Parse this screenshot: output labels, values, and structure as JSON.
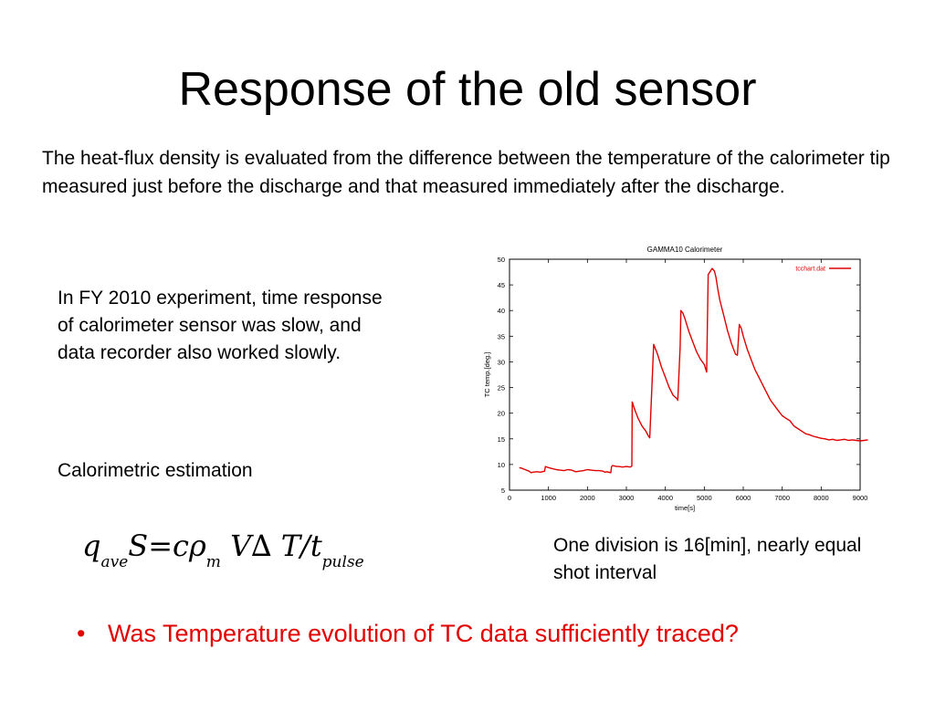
{
  "slide": {
    "title": "Response of the old sensor",
    "intro_text": "The heat-flux density is evaluated from the difference between the temperature of the calorimeter tip measured just before the discharge and that measured immediately after the discharge.",
    "note_text": "In FY 2010 experiment, time response of calorimeter sensor was slow, and data recorder also worked slowly.",
    "calorimetric_label": "Calorimetric estimation",
    "formula": {
      "q": "q",
      "q_sub": "ave",
      "S": "S",
      "eq": "=",
      "c": "c",
      "rho": "ρ",
      "rho_sub": "m",
      "V": "V",
      "delta": "∆",
      "T": "T",
      "slash": "/",
      "t": "t",
      "t_sub": "pulse"
    },
    "division_text": "One division is 16[min], nearly equal shot interval",
    "bullet_marker": "•",
    "bullet_text": "Was Temperature evolution of TC data sufficiently traced?",
    "colors": {
      "bullet": "#e30000",
      "series": "#e00000",
      "text": "#000000"
    }
  },
  "chart_data": {
    "type": "line",
    "title": "GAMMA10 Calorimeter",
    "xlabel": "time[s]",
    "ylabel": "TC temp.[deg.]",
    "xlim": [
      0,
      9000
    ],
    "ylim": [
      5,
      50
    ],
    "x_ticks": [
      0,
      1000,
      2000,
      3000,
      4000,
      5000,
      6000,
      7000,
      8000,
      9000
    ],
    "y_ticks": [
      5,
      10,
      15,
      20,
      25,
      30,
      35,
      40,
      45,
      50
    ],
    "grid": false,
    "legend_position": "top-right",
    "series": [
      {
        "name": "tcchart.dat",
        "color": "#e00000",
        "x": [
          250,
          300,
          400,
          500,
          560,
          600,
          700,
          800,
          900,
          920,
          1000,
          1100,
          1200,
          1300,
          1400,
          1500,
          1600,
          1700,
          1800,
          1900,
          2000,
          2100,
          2200,
          2300,
          2400,
          2450,
          2500,
          2600,
          2620,
          2650,
          2700,
          2750,
          2800,
          2900,
          3000,
          3100,
          3140,
          3150,
          3200,
          3300,
          3400,
          3500,
          3570,
          3600,
          3700,
          3800,
          3900,
          4000,
          4100,
          4200,
          4300,
          4320,
          4380,
          4400,
          4450,
          4500,
          4600,
          4700,
          4800,
          4900,
          5000,
          5060,
          5100,
          5200,
          5260,
          5300,
          5350,
          5400,
          5500,
          5600,
          5700,
          5800,
          5850,
          5900,
          5950,
          6000,
          6100,
          6200,
          6300,
          6400,
          6500,
          6600,
          6700,
          6800,
          6900,
          7000,
          7100,
          7200,
          7300,
          7400,
          7500,
          7600,
          7700,
          7800,
          7900,
          8000,
          8100,
          8200,
          8300,
          8400,
          8500,
          8600,
          8700,
          8800,
          8900,
          9000,
          9100,
          9200
        ],
        "y": [
          9.4,
          9.3,
          9.0,
          8.7,
          8.4,
          8.5,
          8.6,
          8.5,
          8.7,
          9.6,
          9.4,
          9.2,
          9.0,
          8.9,
          8.8,
          9.0,
          8.9,
          8.6,
          8.7,
          8.8,
          9.0,
          8.9,
          8.8,
          8.8,
          8.7,
          8.5,
          8.6,
          8.4,
          9.6,
          9.8,
          9.7,
          9.6,
          9.6,
          9.5,
          9.6,
          9.5,
          9.7,
          22.2,
          21.0,
          19.0,
          17.5,
          16.5,
          15.5,
          15.2,
          33.4,
          31.5,
          29.0,
          27.0,
          25.0,
          23.5,
          22.8,
          22.5,
          33.0,
          40.0,
          39.5,
          38.5,
          36.0,
          34.0,
          32.0,
          30.5,
          29.5,
          28.0,
          47.0,
          48.2,
          47.7,
          46.5,
          44.0,
          42.0,
          39.0,
          36.0,
          33.5,
          31.5,
          31.3,
          37.3,
          36.5,
          35.0,
          32.5,
          30.5,
          28.5,
          27.0,
          25.5,
          24.0,
          22.5,
          21.5,
          20.5,
          19.5,
          19.0,
          18.5,
          17.5,
          17.0,
          16.5,
          16.0,
          15.8,
          15.5,
          15.3,
          15.1,
          15.0,
          14.8,
          14.9,
          14.7,
          14.8,
          14.9,
          14.7,
          14.8,
          14.7,
          14.6,
          14.7,
          14.8
        ]
      }
    ]
  }
}
